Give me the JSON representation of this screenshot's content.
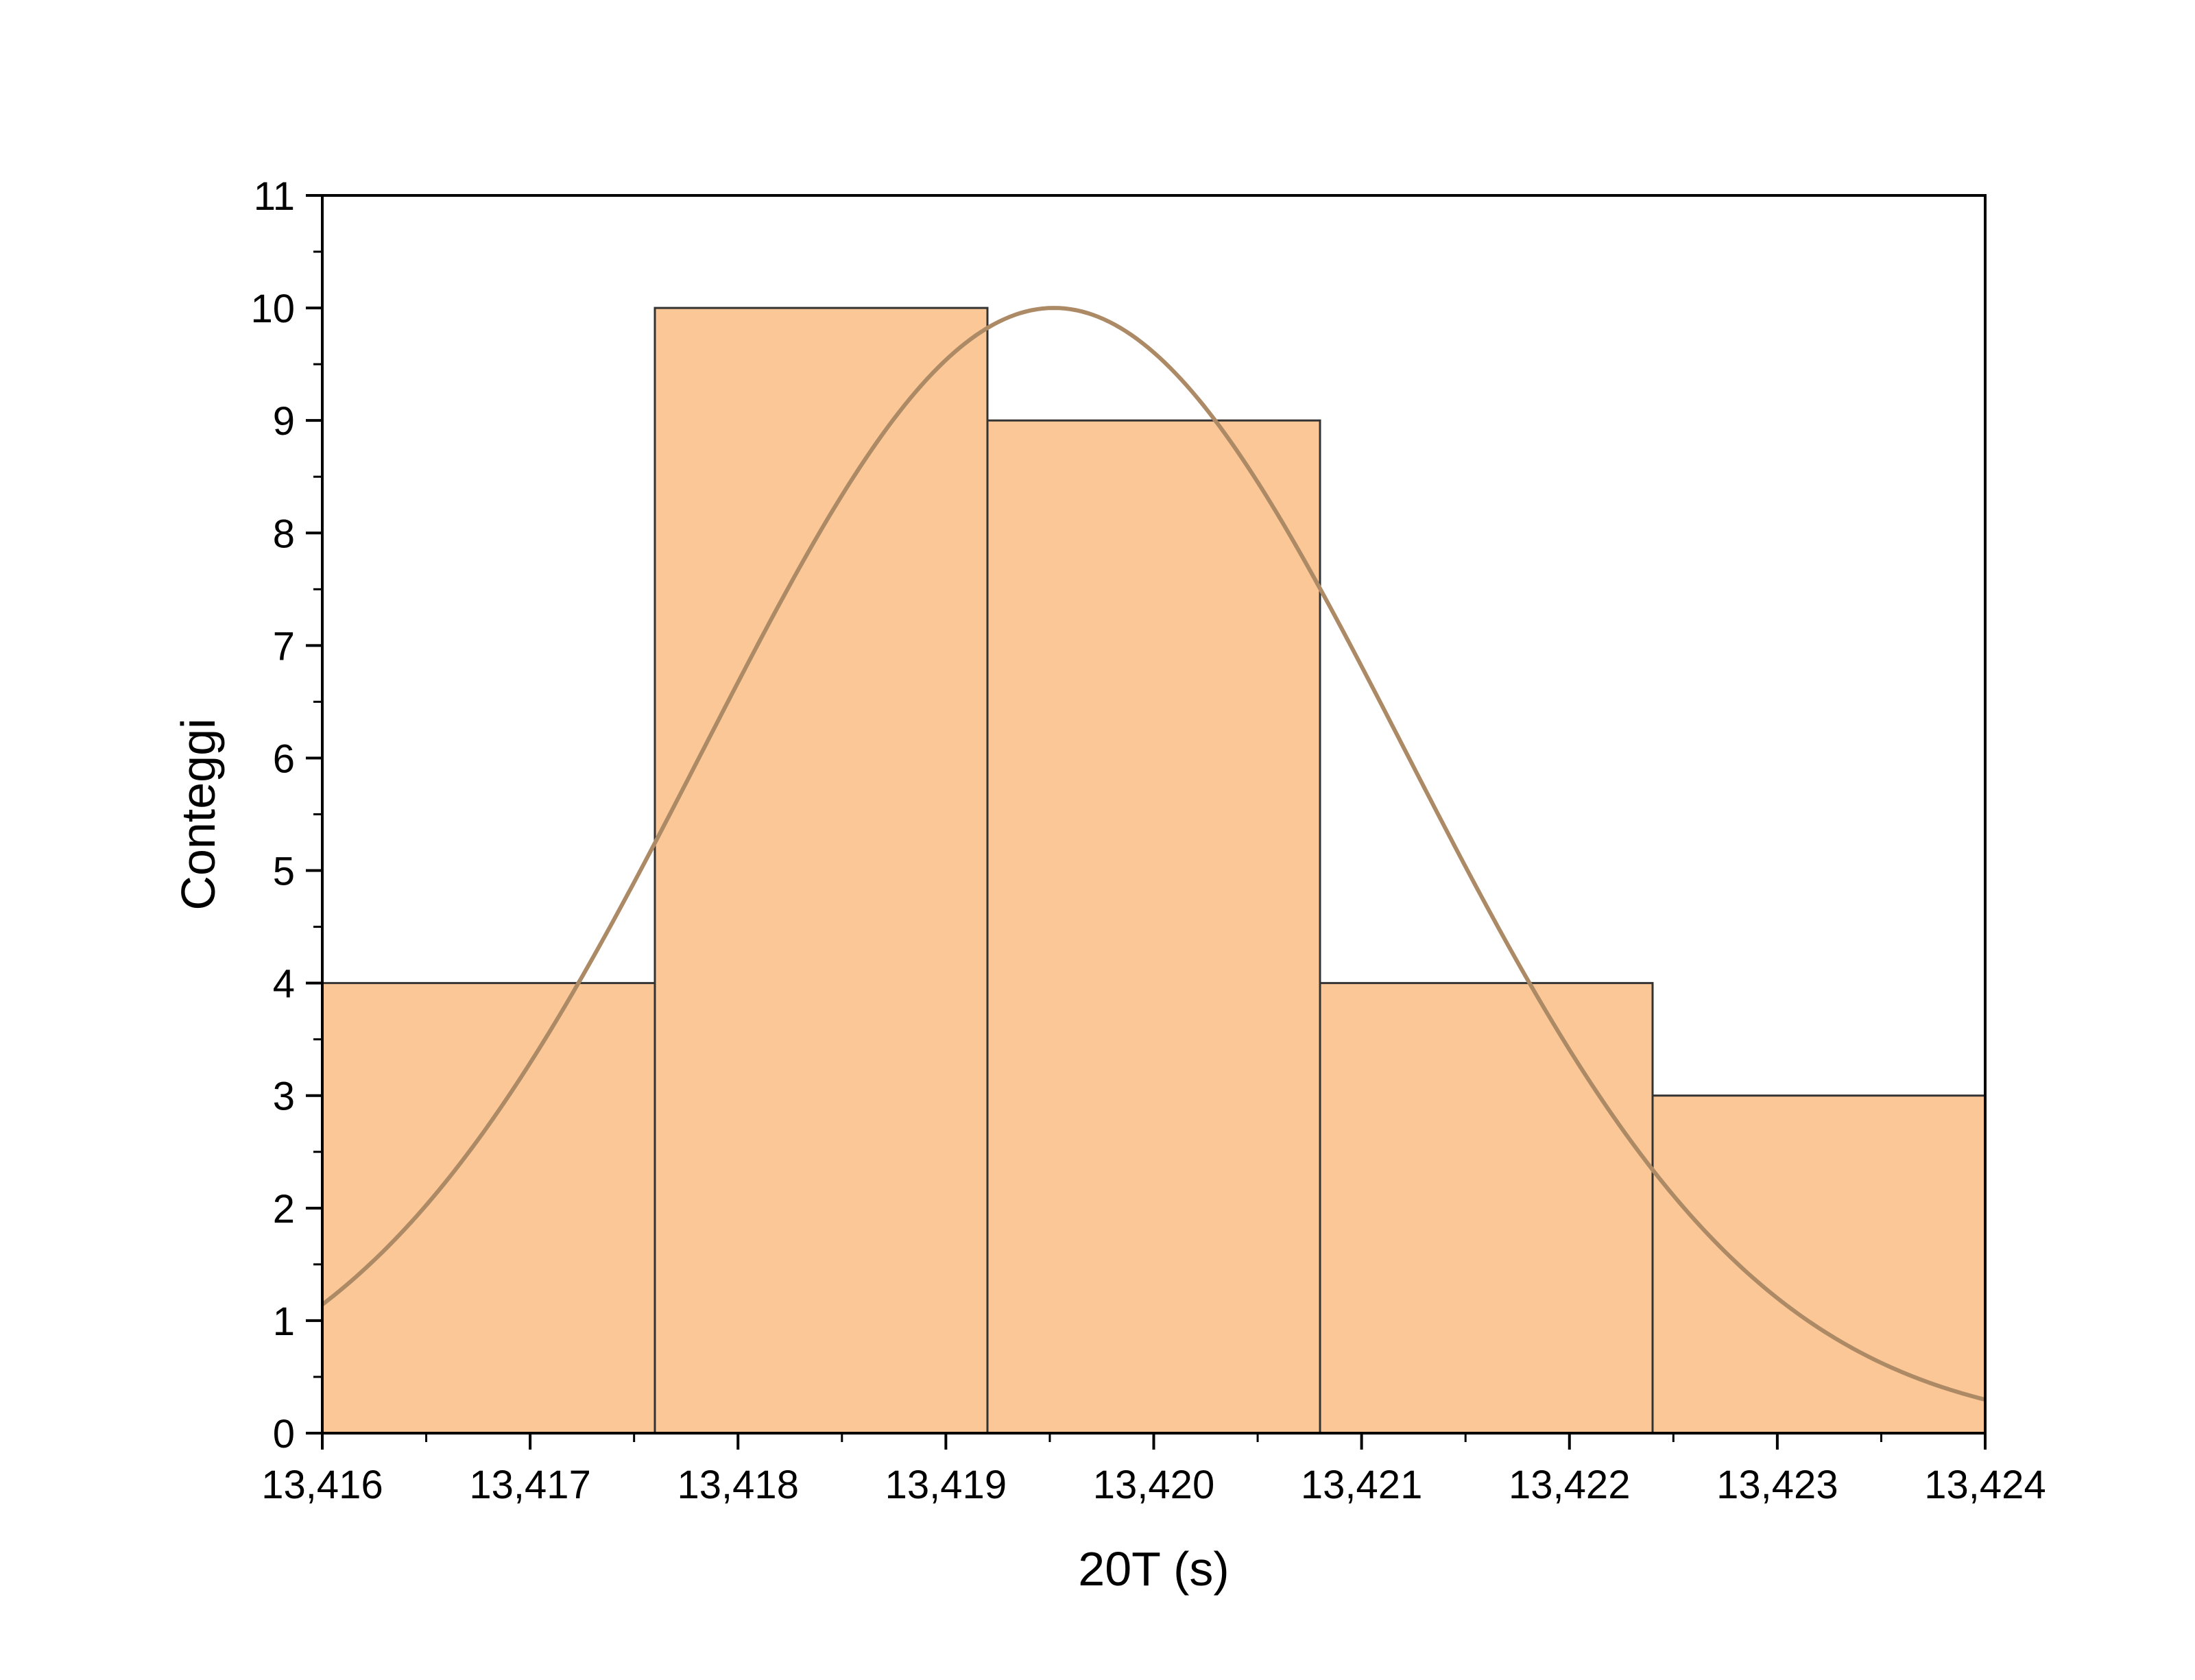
{
  "chart_data": {
    "type": "bar",
    "title": "",
    "xlabel": "20T (s)",
    "ylabel": "Conteggi",
    "xlim": [
      13.416,
      13.424
    ],
    "ylim": [
      0,
      11
    ],
    "x_ticks": [
      13.416,
      13.417,
      13.418,
      13.419,
      13.42,
      13.421,
      13.422,
      13.423,
      13.424
    ],
    "x_tick_labels": [
      "13,416",
      "13,417",
      "13,418",
      "13,419",
      "13,420",
      "13,421",
      "13,422",
      "13,423",
      "13,424"
    ],
    "y_ticks": [
      0,
      1,
      2,
      3,
      4,
      5,
      6,
      7,
      8,
      9,
      10,
      11
    ],
    "y_tick_labels": [
      "0",
      "1",
      "2",
      "3",
      "4",
      "5",
      "6",
      "7",
      "8",
      "9",
      "10",
      "11"
    ],
    "bins": [
      {
        "start": 13.416,
        "end": 13.4176,
        "count": 4
      },
      {
        "start": 13.4176,
        "end": 13.4192,
        "count": 10
      },
      {
        "start": 13.4192,
        "end": 13.4208,
        "count": 9
      },
      {
        "start": 13.4208,
        "end": 13.4224,
        "count": 4
      },
      {
        "start": 13.4224,
        "end": 13.424,
        "count": 3
      }
    ],
    "fit_curve": {
      "type": "gaussian",
      "peak": 10.0,
      "mean": 13.41952,
      "sigma": 0.00169
    },
    "grid": false,
    "legend": "none",
    "colors": {
      "bar_fill": "#fcc797",
      "bar_edge": "#333333",
      "curve": "#ad8a66",
      "axis": "#000000"
    }
  }
}
